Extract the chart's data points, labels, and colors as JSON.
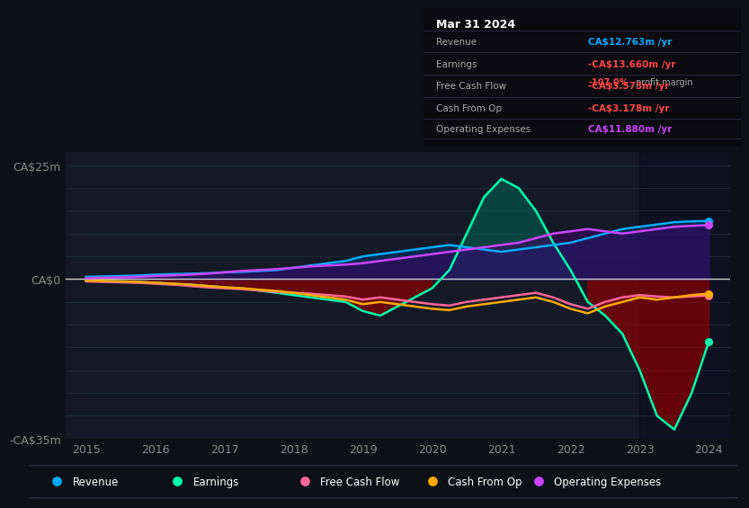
{
  "bg_color": "#0d1117",
  "chart_bg": "#131a26",
  "grid_color": "#1e2d3d",
  "zero_line_color": "#cccccc",
  "years": [
    2015.0,
    2015.25,
    2015.5,
    2015.75,
    2016.0,
    2016.25,
    2016.5,
    2016.75,
    2017.0,
    2017.25,
    2017.5,
    2017.75,
    2018.0,
    2018.25,
    2018.5,
    2018.75,
    2019.0,
    2019.25,
    2019.5,
    2019.75,
    2020.0,
    2020.25,
    2020.5,
    2020.75,
    2021.0,
    2021.25,
    2021.5,
    2021.75,
    2022.0,
    2022.25,
    2022.5,
    2022.75,
    2023.0,
    2023.25,
    2023.5,
    2023.75,
    2024.0
  ],
  "revenue": [
    0.5,
    0.6,
    0.7,
    0.8,
    1.0,
    1.1,
    1.2,
    1.3,
    1.5,
    1.6,
    1.8,
    2.0,
    2.5,
    3.0,
    3.5,
    4.0,
    5.0,
    5.5,
    6.0,
    6.5,
    7.0,
    7.5,
    7.0,
    6.5,
    6.0,
    6.5,
    7.0,
    7.5,
    8.0,
    9.0,
    10.0,
    11.0,
    11.5,
    12.0,
    12.5,
    12.7,
    12.763
  ],
  "earnings": [
    -0.3,
    -0.4,
    -0.5,
    -0.6,
    -0.8,
    -1.0,
    -1.2,
    -1.5,
    -1.8,
    -2.0,
    -2.5,
    -3.0,
    -3.5,
    -4.0,
    -4.5,
    -5.0,
    -7.0,
    -8.0,
    -6.0,
    -4.0,
    -2.0,
    2.0,
    10.0,
    18.0,
    22.0,
    20.0,
    15.0,
    8.0,
    2.0,
    -5.0,
    -8.0,
    -12.0,
    -20.0,
    -30.0,
    -33.0,
    -25.0,
    -13.66
  ],
  "free_cash_flow": [
    -0.5,
    -0.6,
    -0.7,
    -0.8,
    -1.0,
    -1.2,
    -1.5,
    -1.8,
    -2.0,
    -2.2,
    -2.5,
    -2.8,
    -3.0,
    -3.2,
    -3.5,
    -3.8,
    -4.5,
    -4.0,
    -4.5,
    -5.0,
    -5.5,
    -5.8,
    -5.0,
    -4.5,
    -4.0,
    -3.5,
    -3.0,
    -4.0,
    -5.5,
    -6.5,
    -5.0,
    -4.0,
    -3.5,
    -3.8,
    -4.0,
    -3.8,
    -3.573
  ],
  "cash_from_op": [
    -0.3,
    -0.4,
    -0.5,
    -0.6,
    -0.8,
    -1.0,
    -1.2,
    -1.5,
    -1.8,
    -2.0,
    -2.3,
    -2.6,
    -3.0,
    -3.5,
    -4.0,
    -4.5,
    -5.5,
    -5.0,
    -5.5,
    -6.0,
    -6.5,
    -6.8,
    -6.0,
    -5.5,
    -5.0,
    -4.5,
    -4.0,
    -5.0,
    -6.5,
    -7.5,
    -6.0,
    -5.0,
    -4.0,
    -4.5,
    -4.0,
    -3.5,
    -3.178
  ],
  "op_expenses": [
    0.2,
    0.3,
    0.4,
    0.5,
    0.7,
    0.8,
    1.0,
    1.2,
    1.5,
    1.8,
    2.0,
    2.2,
    2.5,
    2.8,
    3.0,
    3.2,
    3.5,
    4.0,
    4.5,
    5.0,
    5.5,
    6.0,
    6.5,
    7.0,
    7.5,
    8.0,
    9.0,
    10.0,
    10.5,
    11.0,
    10.5,
    10.0,
    10.5,
    11.0,
    11.5,
    11.7,
    11.88
  ],
  "revenue_color": "#00aaff",
  "earnings_color": "#00ffaa",
  "fcf_color": "#ff6699",
  "cfo_color": "#ffaa00",
  "opex_color": "#cc44ff",
  "ylim": [
    -35,
    28
  ],
  "yticks": [
    -35,
    0,
    25
  ],
  "ytick_labels": [
    "-CA$35m",
    "CA$0",
    "CA$25m"
  ],
  "xticks": [
    2015,
    2016,
    2017,
    2018,
    2019,
    2020,
    2021,
    2022,
    2023,
    2024
  ],
  "legend_items": [
    {
      "label": "Revenue",
      "color": "#00aaff"
    },
    {
      "label": "Earnings",
      "color": "#00ffaa"
    },
    {
      "label": "Free Cash Flow",
      "color": "#ff6699"
    },
    {
      "label": "Cash From Op",
      "color": "#ffaa00"
    },
    {
      "label": "Operating Expenses",
      "color": "#cc44ff"
    }
  ],
  "infobox": {
    "date": "Mar 31 2024",
    "rows": [
      {
        "label": "Revenue",
        "value": "CA$12.763m /yr",
        "value_color": "#00aaff",
        "sub": null
      },
      {
        "label": "Earnings",
        "value": "-CA$13.660m /yr",
        "value_color": "#ff4444",
        "sub": {
          "colored": "-107.0%",
          "plain": " profit margin"
        }
      },
      {
        "label": "Free Cash Flow",
        "value": "-CA$3.573m /yr",
        "value_color": "#ff4444",
        "sub": null
      },
      {
        "label": "Cash From Op",
        "value": "-CA$3.178m /yr",
        "value_color": "#ff4444",
        "sub": null
      },
      {
        "label": "Operating Expenses",
        "value": "CA$11.880m /yr",
        "value_color": "#cc44ff",
        "sub": null
      }
    ]
  }
}
